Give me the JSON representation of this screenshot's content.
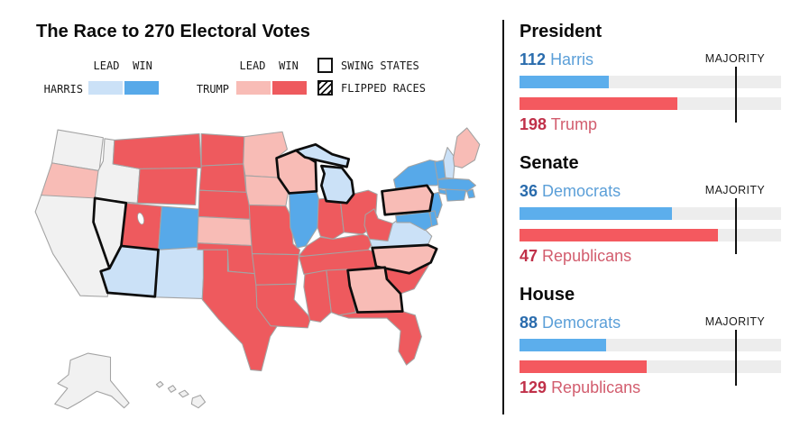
{
  "title": "The Race to 270 Electoral Votes",
  "legend": {
    "lead_label": "LEAD",
    "win_label": "WIN",
    "harris_label": "HARRIS",
    "trump_label": "TRUMP",
    "swing_label": "SWING STATES",
    "flipped_label": "FLIPPED RACES",
    "colors": {
      "harris_lead": "#cbe1f7",
      "harris_win": "#57a9e9",
      "trump_lead": "#f8bcb6",
      "trump_win": "#ee5a5e"
    }
  },
  "panel": {
    "majority_label": "MAJORITY",
    "sections": [
      {
        "heading": "President",
        "majority": 270,
        "dem": {
          "value": 112,
          "name": "Harris"
        },
        "rep": {
          "value": 198,
          "name": "Trump"
        }
      },
      {
        "heading": "Senate",
        "majority": 51,
        "dem": {
          "value": 36,
          "name": "Democrats"
        },
        "rep": {
          "value": 47,
          "name": "Republicans"
        }
      },
      {
        "heading": "House",
        "majority": 218,
        "dem": {
          "value": 88,
          "name": "Democrats"
        },
        "rep": {
          "value": 129,
          "name": "Republicans"
        }
      }
    ]
  },
  "map": {
    "status_colors": {
      "uncalled": "#f1f1f1",
      "harris_lead": "#cbe1f7",
      "harris_win": "#57a9e9",
      "trump_lead": "#f8bcb6",
      "trump_win": "#ee5a5e"
    },
    "swing_states": [
      "NV",
      "AZ",
      "WI",
      "MI",
      "PA",
      "NC",
      "GA"
    ],
    "states": {
      "WA": "uncalled",
      "OR": "trump_lead",
      "CA": "uncalled",
      "NV": "uncalled",
      "ID": "uncalled",
      "MT": "trump_win",
      "WY": "trump_win",
      "UT": "trump_win",
      "CO": "harris_win",
      "AZ": "harris_lead",
      "NM": "harris_lead",
      "ND": "trump_win",
      "SD": "trump_win",
      "NE": "trump_win",
      "KS": "trump_lead",
      "OK": "trump_win",
      "TX": "trump_win",
      "MN": "trump_lead",
      "IA": "trump_lead",
      "MO": "trump_win",
      "AR": "trump_win",
      "LA": "trump_win",
      "WI": "trump_lead",
      "IL": "harris_win",
      "MI": "harris_lead",
      "IN": "trump_win",
      "OH": "trump_win",
      "KY": "trump_win",
      "TN": "trump_win",
      "MS": "trump_win",
      "AL": "trump_win",
      "GA": "trump_lead",
      "FL": "trump_win",
      "SC": "trump_win",
      "NC": "trump_lead",
      "VA": "harris_lead",
      "WV": "trump_win",
      "PA": "trump_lead",
      "NY": "harris_win",
      "VT": "harris_win",
      "NH": "harris_lead",
      "ME": "trump_lead",
      "MA": "harris_win",
      "RI": "harris_win",
      "CT": "harris_win",
      "NJ": "harris_win",
      "DE": "harris_win",
      "MD": "harris_win",
      "AK": "uncalled",
      "HI": "uncalled"
    }
  },
  "chart_data": [
    {
      "type": "bar",
      "title": "President",
      "categories": [
        "Harris",
        "Trump"
      ],
      "values": [
        112,
        198
      ],
      "majority": 270,
      "majority_label": "MAJORITY",
      "colors": [
        "#5caeec",
        "#f4595f"
      ],
      "legend_position": "none"
    },
    {
      "type": "bar",
      "title": "Senate",
      "categories": [
        "Democrats",
        "Republicans"
      ],
      "values": [
        36,
        47
      ],
      "majority": 51,
      "majority_label": "MAJORITY",
      "colors": [
        "#5caeec",
        "#f4595f"
      ],
      "legend_position": "none"
    },
    {
      "type": "bar",
      "title": "House",
      "categories": [
        "Democrats",
        "Republicans"
      ],
      "values": [
        88,
        129
      ],
      "majority": 218,
      "majority_label": "MAJORITY",
      "colors": [
        "#5caeec",
        "#f4595f"
      ],
      "legend_position": "none"
    }
  ]
}
